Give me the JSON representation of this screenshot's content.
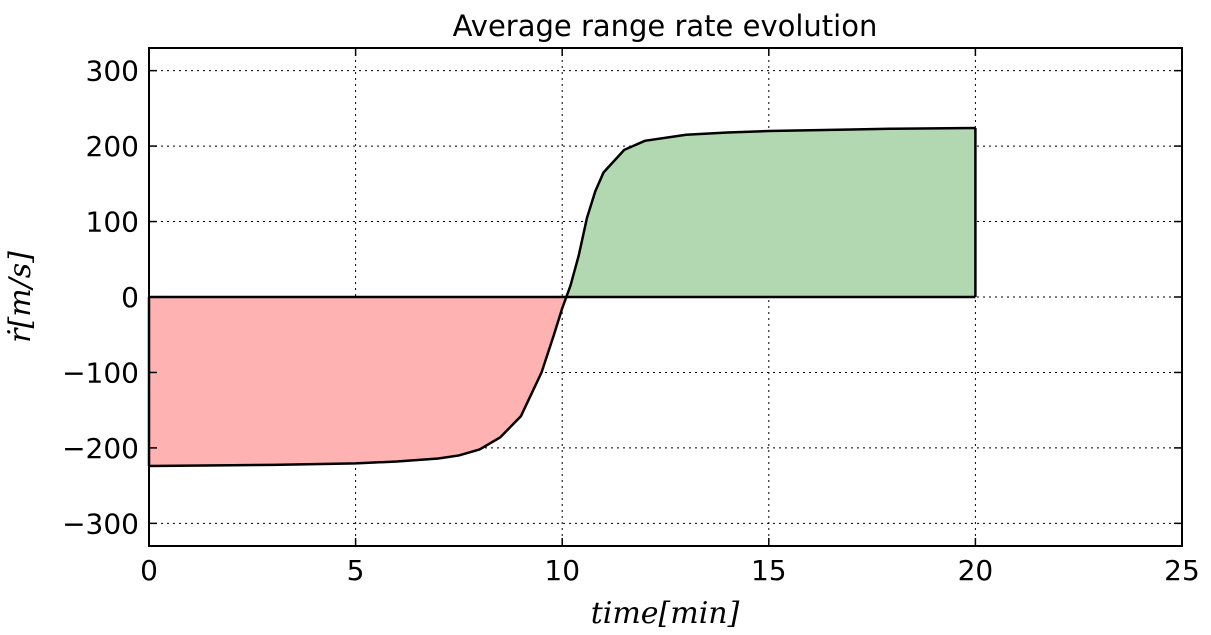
{
  "chart_data": {
    "type": "area",
    "title": "Average range rate evolution",
    "xlabel": "time[min]",
    "ylabel": "ṙ[m/s]",
    "xlim": [
      0,
      25
    ],
    "ylim": [
      -330,
      330
    ],
    "x_ticks": [
      0,
      5,
      10,
      15,
      20,
      25
    ],
    "x_tick_labels": [
      "0",
      "5",
      "10",
      "15",
      "20",
      "25"
    ],
    "y_ticks": [
      -300,
      -200,
      -100,
      0,
      100,
      200,
      300
    ],
    "y_tick_labels": [
      "−300",
      "−200",
      "−100",
      "0",
      "100",
      "200",
      "300"
    ],
    "grid": true,
    "grid_style": "dotted",
    "series": [
      {
        "x": [
          0,
          1,
          2,
          3,
          4,
          5,
          6,
          7,
          7.5,
          8,
          8.5,
          9,
          9.5,
          9.8,
          10,
          10.1,
          10.2,
          10.4,
          10.6,
          10.8,
          11,
          11.5,
          12,
          13,
          14,
          15,
          16,
          17,
          18,
          19,
          20
        ],
        "y": [
          -224,
          -223.5,
          -223,
          -222.5,
          -221.5,
          -220.5,
          -218,
          -214,
          -210,
          -202,
          -186,
          -158,
          -100,
          -50,
          -15,
          0,
          15,
          55,
          105,
          140,
          165,
          195,
          207,
          215,
          218,
          220,
          221,
          222,
          223,
          223.5,
          224
        ]
      }
    ],
    "fill_colors": {
      "negative": "#ffb2b2",
      "positive": "#b2d8b2"
    },
    "line_color": "#000000"
  }
}
